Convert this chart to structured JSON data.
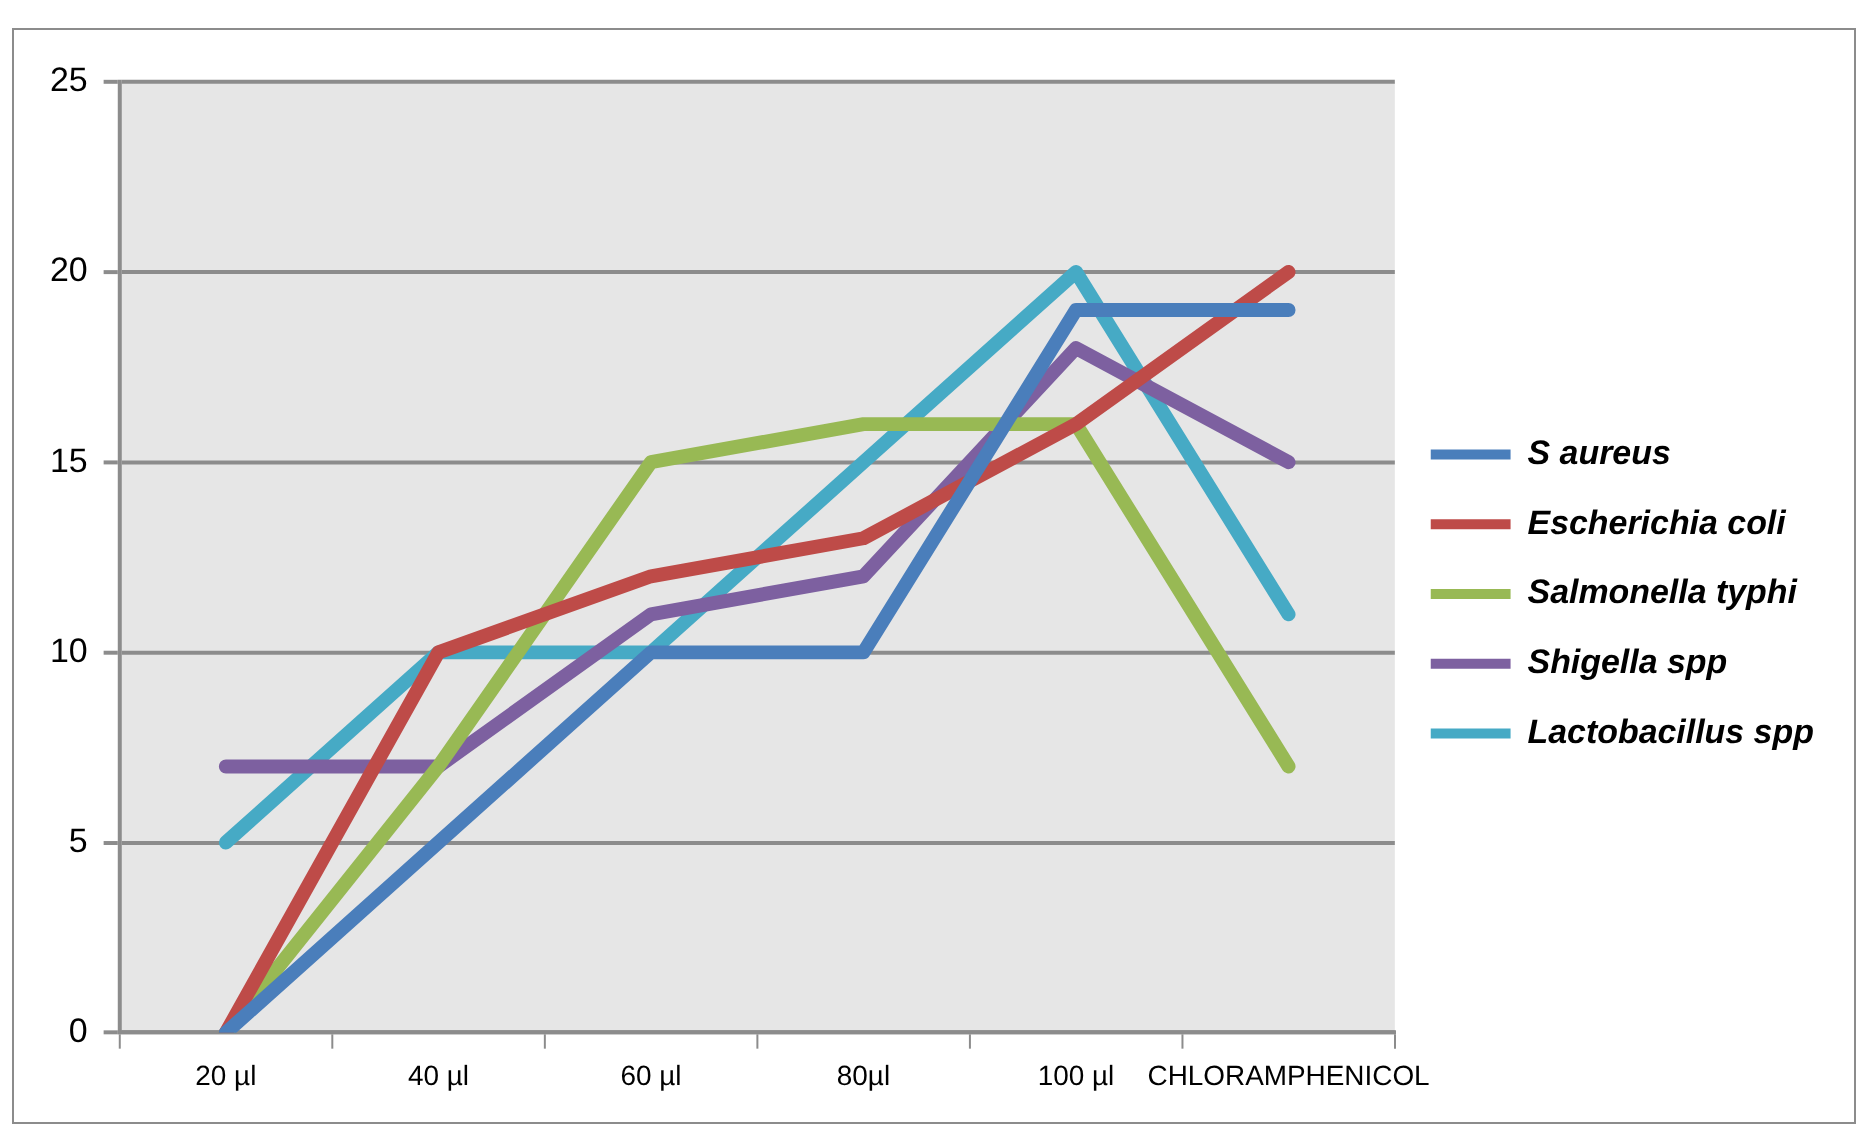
{
  "chart_data": {
    "type": "line",
    "categories": [
      "20 µl",
      "40 µl",
      "60 µl",
      "80µl",
      "100 µl",
      "CHLORAMPHENICOL"
    ],
    "series": [
      {
        "name": "S aureus",
        "color": "#4a7ebb",
        "values": [
          0,
          5,
          10,
          10,
          19,
          19
        ]
      },
      {
        "name": "Escherichia coli",
        "color": "#be4b48",
        "values": [
          0,
          10,
          12,
          13,
          16,
          20
        ]
      },
      {
        "name": "Salmonella typhi",
        "color": "#98b954",
        "values": [
          0,
          7,
          15,
          16,
          16,
          7
        ]
      },
      {
        "name": "Shigella spp",
        "color": "#7d60a0",
        "values": [
          7,
          7,
          11,
          12,
          18,
          15
        ]
      },
      {
        "name": "Lactobacillus spp",
        "color": "#46aac5",
        "values": [
          5,
          10,
          10,
          15,
          20,
          11
        ]
      }
    ],
    "ylim": [
      0,
      25
    ],
    "yticks": [
      0,
      5,
      10,
      15,
      20,
      25
    ],
    "grid": "y",
    "legend": "right",
    "marker": "none"
  }
}
